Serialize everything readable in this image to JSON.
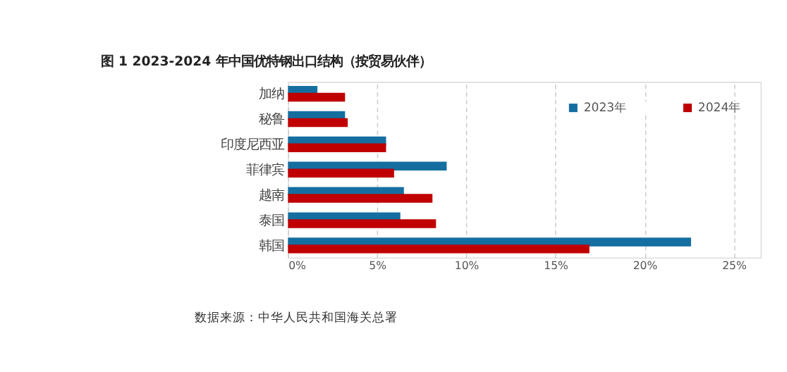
{
  "chart_data": {
    "type": "bar",
    "orientation": "horizontal",
    "title": "图 1 2023-2024 年中国优特钢出口结构（按贸易伙伴）",
    "categories": [
      "加纳",
      "秘鲁",
      "印度尼西亚",
      "菲律宾",
      "越南",
      "泰国",
      "韩国"
    ],
    "series": [
      {
        "name": "2023年",
        "color": "#156ea0",
        "values": [
          1.65,
          3.2,
          5.5,
          8.9,
          6.5,
          6.3,
          22.6
        ]
      },
      {
        "name": "2024年",
        "color": "#c00000",
        "values": [
          3.2,
          3.35,
          5.5,
          5.95,
          8.1,
          8.3,
          16.9
        ]
      }
    ],
    "xlim": [
      0,
      26.5
    ],
    "xticks": [
      {
        "value": 0,
        "label": "0%"
      },
      {
        "value": 5,
        "label": "5%"
      },
      {
        "value": 10,
        "label": "10%"
      },
      {
        "value": 15,
        "label": "15%"
      },
      {
        "value": 20,
        "label": "20%"
      },
      {
        "value": 25,
        "label": "25%"
      }
    ],
    "grid": "x",
    "legend": "top right",
    "annotations": [
      "数据来源：中华人民共和国海关总署"
    ]
  }
}
